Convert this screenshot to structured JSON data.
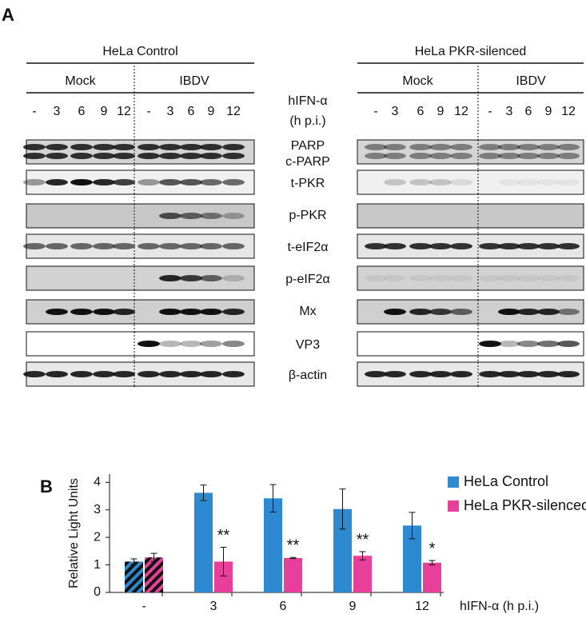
{
  "panel_a": {
    "label": "A",
    "groups": [
      {
        "title": "HeLa Control",
        "conditions": [
          "Mock",
          "IBDV"
        ]
      },
      {
        "title": "HeLa PKR-silenced",
        "conditions": [
          "Mock",
          "IBDV"
        ]
      }
    ],
    "lanes": [
      "-",
      "3",
      "6",
      "9",
      "12"
    ],
    "treatment": [
      "hIFN-α",
      "(h p.i.)"
    ],
    "blots": [
      [
        "PARP",
        "c-PARP"
      ],
      [
        "t-PKR"
      ],
      [
        "p-PKR"
      ],
      [
        "t-eIF2α"
      ],
      [
        "p-eIF2α"
      ],
      [
        "Mx"
      ],
      [
        "VP3"
      ],
      [
        "β-actin"
      ]
    ]
  },
  "chart_data": {
    "type": "bar",
    "label": "B",
    "y_label": "Relative Light Units",
    "x_label": "hIFN-α (h p.i.)",
    "categories": [
      "-",
      "3",
      "6",
      "9",
      "12"
    ],
    "series": [
      {
        "name": "HeLa Control",
        "color": "#2e8ad0",
        "values": [
          1.12,
          3.62,
          3.42,
          3.03,
          2.43
        ],
        "errors": [
          0.1,
          0.28,
          0.5,
          0.73,
          0.48
        ]
      },
      {
        "name": "HeLa PKR-silenced",
        "color": "#e8409a",
        "values": [
          1.27,
          1.12,
          1.25,
          1.33,
          1.08
        ],
        "errors": [
          0.15,
          0.52,
          0.02,
          0.15,
          0.08
        ],
        "significance": [
          null,
          "**",
          "**",
          "**",
          "*"
        ]
      }
    ],
    "hatched": [
      true,
      false,
      false,
      false,
      false
    ],
    "ylim": [
      0,
      4.3
    ],
    "yticks": [
      0,
      1,
      2,
      3,
      4
    ],
    "legend": "right"
  }
}
